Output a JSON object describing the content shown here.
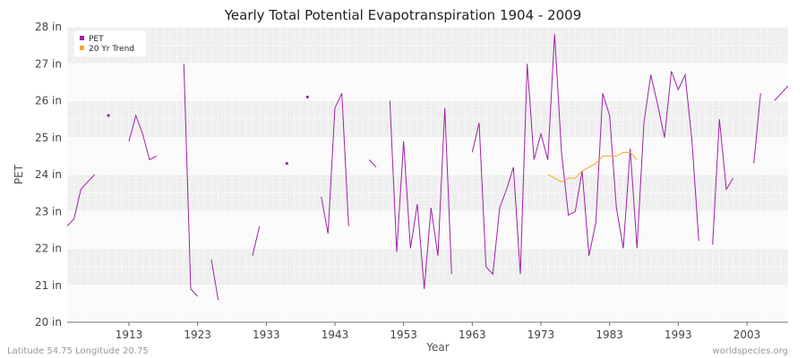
{
  "chart_data": {
    "type": "line",
    "title": "Yearly Total Potential Evapotranspiration 1904 - 2009",
    "xlabel": "Year",
    "ylabel": "PET",
    "xlim": [
      1904,
      2009
    ],
    "ylim": [
      20,
      28
    ],
    "x_ticks": [
      1913,
      1923,
      1933,
      1943,
      1953,
      1963,
      1973,
      1983,
      1993,
      2003
    ],
    "y_ticks": [
      {
        "value": 20,
        "label": "20 in"
      },
      {
        "value": 21,
        "label": "21 in"
      },
      {
        "value": 22,
        "label": "22 in"
      },
      {
        "value": 23,
        "label": "23 in"
      },
      {
        "value": 24,
        "label": "24 in"
      },
      {
        "value": 25,
        "label": "25 in"
      },
      {
        "value": 26,
        "label": "26 in"
      },
      {
        "value": 27,
        "label": "27 in"
      },
      {
        "value": 28,
        "label": "28 in"
      }
    ],
    "legend": {
      "position": "top-left",
      "entries": [
        {
          "label": "PET",
          "color": "#a020a8"
        },
        {
          "label": "20 Yr Trend",
          "color": "#f5a623"
        }
      ]
    },
    "series": [
      {
        "name": "PET",
        "color": "#a020a8",
        "points": [
          [
            1904,
            22.6
          ],
          [
            1905,
            22.8
          ],
          [
            1906,
            23.6
          ],
          [
            1907,
            23.8
          ],
          [
            1908,
            24.0
          ],
          [
            1909,
            null
          ],
          [
            1910,
            25.6
          ],
          [
            1911,
            null
          ],
          [
            1912,
            null
          ],
          [
            1913,
            24.9
          ],
          [
            1914,
            25.6
          ],
          [
            1915,
            25.1
          ],
          [
            1916,
            24.4
          ],
          [
            1917,
            24.5
          ],
          [
            1918,
            null
          ],
          [
            1919,
            null
          ],
          [
            1920,
            null
          ],
          [
            1921,
            27.0
          ],
          [
            1922,
            20.9
          ],
          [
            1923,
            20.7
          ],
          [
            1924,
            null
          ],
          [
            1925,
            21.7
          ],
          [
            1926,
            20.6
          ],
          [
            1927,
            null
          ],
          [
            1928,
            null
          ],
          [
            1929,
            null
          ],
          [
            1930,
            null
          ],
          [
            1931,
            21.8
          ],
          [
            1932,
            22.6
          ],
          [
            1933,
            null
          ],
          [
            1934,
            null
          ],
          [
            1935,
            null
          ],
          [
            1936,
            24.3
          ],
          [
            1937,
            null
          ],
          [
            1938,
            null
          ],
          [
            1939,
            26.1
          ],
          [
            1940,
            null
          ],
          [
            1941,
            23.4
          ],
          [
            1942,
            22.4
          ],
          [
            1943,
            25.8
          ],
          [
            1944,
            26.2
          ],
          [
            1945,
            22.6
          ],
          [
            1946,
            null
          ],
          [
            1947,
            null
          ],
          [
            1948,
            24.4
          ],
          [
            1949,
            24.2
          ],
          [
            1950,
            null
          ],
          [
            1951,
            26.0
          ],
          [
            1952,
            21.9
          ],
          [
            1953,
            24.9
          ],
          [
            1954,
            22.0
          ],
          [
            1955,
            23.2
          ],
          [
            1956,
            20.9
          ],
          [
            1957,
            23.1
          ],
          [
            1958,
            21.8
          ],
          [
            1959,
            25.8
          ],
          [
            1960,
            21.3
          ],
          [
            1961,
            null
          ],
          [
            1962,
            null
          ],
          [
            1963,
            24.6
          ],
          [
            1964,
            25.4
          ],
          [
            1965,
            21.5
          ],
          [
            1966,
            21.3
          ],
          [
            1967,
            23.1
          ],
          [
            1968,
            23.6
          ],
          [
            1969,
            24.2
          ],
          [
            1970,
            21.3
          ],
          [
            1971,
            27.0
          ],
          [
            1972,
            24.4
          ],
          [
            1973,
            25.1
          ],
          [
            1974,
            24.4
          ],
          [
            1975,
            27.8
          ],
          [
            1976,
            24.6
          ],
          [
            1977,
            22.9
          ],
          [
            1978,
            23.0
          ],
          [
            1979,
            24.1
          ],
          [
            1980,
            21.8
          ],
          [
            1981,
            22.7
          ],
          [
            1982,
            26.2
          ],
          [
            1983,
            25.6
          ],
          [
            1984,
            23.1
          ],
          [
            1985,
            22.0
          ],
          [
            1986,
            24.7
          ],
          [
            1987,
            22.0
          ],
          [
            1988,
            25.4
          ],
          [
            1989,
            26.7
          ],
          [
            1990,
            25.9
          ],
          [
            1991,
            25.0
          ],
          [
            1992,
            26.8
          ],
          [
            1993,
            26.3
          ],
          [
            1994,
            26.7
          ],
          [
            1995,
            24.9
          ],
          [
            1996,
            22.2
          ],
          [
            1997,
            null
          ],
          [
            1998,
            22.1
          ],
          [
            1999,
            25.5
          ],
          [
            2000,
            23.6
          ],
          [
            2001,
            23.9
          ],
          [
            2002,
            null
          ],
          [
            2003,
            null
          ],
          [
            2004,
            24.3
          ],
          [
            2005,
            26.2
          ],
          [
            2006,
            null
          ],
          [
            2007,
            26.0
          ],
          [
            2008,
            26.2
          ],
          [
            2009,
            26.4
          ]
        ]
      },
      {
        "name": "20 Yr Trend",
        "color": "#f5a623",
        "points": [
          [
            1974,
            24.0
          ],
          [
            1975,
            23.9
          ],
          [
            1976,
            23.8
          ],
          [
            1977,
            23.9
          ],
          [
            1978,
            23.9
          ],
          [
            1979,
            24.1
          ],
          [
            1980,
            24.2
          ],
          [
            1981,
            24.3
          ],
          [
            1982,
            24.5
          ],
          [
            1983,
            24.5
          ],
          [
            1984,
            24.5
          ],
          [
            1985,
            24.6
          ],
          [
            1986,
            24.6
          ],
          [
            1987,
            24.4
          ]
        ]
      }
    ]
  },
  "footer": {
    "left": "Latitude 54.75 Longitude 20.75",
    "right": "worldspecies.org"
  }
}
